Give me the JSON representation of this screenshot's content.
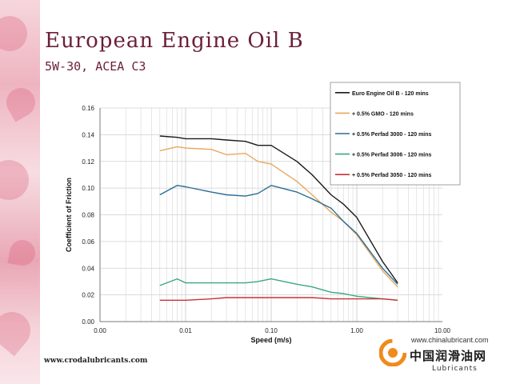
{
  "slide": {
    "title": "European Engine Oil B",
    "subtitle": "5W-30, ACEA C3",
    "footer_url": "www.crodalubricants.com"
  },
  "watermark": {
    "url": "www.chinalubricant.com",
    "chinese_name": "中国润滑油网",
    "tagline": "Lubricants"
  },
  "chart_data": {
    "type": "line",
    "title": "",
    "xlabel": "Speed (m/s)",
    "ylabel": "Coefficient of Friction",
    "xscale": "log",
    "xlim": [
      0.001,
      10
    ],
    "ylim": [
      0,
      0.16
    ],
    "x_tick_labels": [
      "0.00",
      "0.01",
      "0.10",
      "1.00",
      "10.00"
    ],
    "x_tick_values": [
      0.001,
      0.01,
      0.1,
      1,
      10
    ],
    "y_tick_labels": [
      "0.00",
      "0.02",
      "0.04",
      "0.06",
      "0.08",
      "0.10",
      "0.12",
      "0.14",
      "0.16"
    ],
    "y_tick_values": [
      0,
      0.02,
      0.04,
      0.06,
      0.08,
      0.1,
      0.12,
      0.14,
      0.16
    ],
    "grid": true,
    "legend_position": "top-right",
    "x": [
      0.005,
      0.008,
      0.01,
      0.02,
      0.03,
      0.05,
      0.07,
      0.1,
      0.2,
      0.3,
      0.5,
      0.7,
      1.0,
      2.0,
      3.0
    ],
    "series": [
      {
        "name": "Euro Engine Oil B - 120 mins",
        "color": "#1a1a1a",
        "values": [
          0.139,
          0.138,
          0.137,
          0.137,
          0.136,
          0.135,
          0.132,
          0.132,
          0.12,
          0.11,
          0.095,
          0.088,
          0.078,
          0.045,
          0.029
        ]
      },
      {
        "name": "+ 0.5% GMO - 120 mins",
        "color": "#e8a85e",
        "values": [
          0.128,
          0.131,
          0.13,
          0.129,
          0.125,
          0.126,
          0.12,
          0.118,
          0.105,
          0.095,
          0.082,
          0.075,
          0.065,
          0.038,
          0.026
        ]
      },
      {
        "name": "+ 0.5% Perfad 3000 - 120 mins",
        "color": "#2a6d96",
        "values": [
          0.095,
          0.102,
          0.101,
          0.097,
          0.095,
          0.094,
          0.096,
          0.102,
          0.097,
          0.092,
          0.085,
          0.075,
          0.066,
          0.04,
          0.028
        ]
      },
      {
        "name": "+ 0.5% Perfad 3006 - 120 mins",
        "color": "#3aa882",
        "values": [
          0.027,
          0.032,
          0.029,
          0.029,
          0.029,
          0.029,
          0.03,
          0.032,
          0.028,
          0.026,
          0.022,
          0.021,
          0.019,
          0.017,
          0.016
        ]
      },
      {
        "name": "+ 0.5% Perfad 3050 - 120 mins",
        "color": "#c8323a",
        "values": [
          0.016,
          0.016,
          0.016,
          0.017,
          0.018,
          0.018,
          0.018,
          0.018,
          0.018,
          0.018,
          0.017,
          0.017,
          0.017,
          0.017,
          0.016
        ]
      }
    ]
  }
}
